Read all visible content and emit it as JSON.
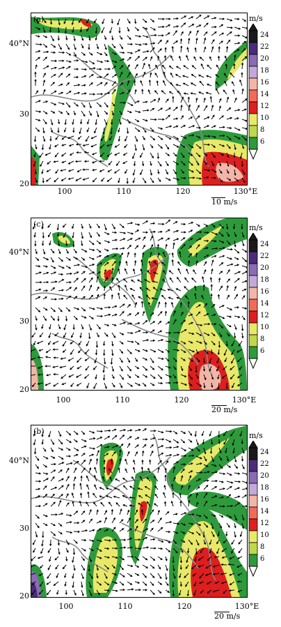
{
  "colorbar": {
    "unit": "m/s",
    "ticks": [
      "24",
      "22",
      "20",
      "18",
      "16",
      "14",
      "12",
      "10",
      "8",
      "6"
    ],
    "colors": [
      "#1a1a1a",
      "#4b2c7a",
      "#8b6bb4",
      "#c3a9d9",
      "#f2b6a8",
      "#f26b5a",
      "#dd1f1f",
      "#e8e86a",
      "#bfd94a",
      "#2e9a3c"
    ]
  },
  "panels": [
    {
      "label": "(a)",
      "x_ticks": [
        "100",
        "110",
        "120",
        "130°E"
      ],
      "y_ticks": [
        "40°N",
        "30",
        "20"
      ],
      "ref_vector": "10 m/s"
    },
    {
      "label": "(c)",
      "x_ticks": [
        "100",
        "110",
        "120",
        "130°E"
      ],
      "y_ticks": [
        "40°N",
        "30",
        "20"
      ],
      "ref_vector": "20 m/s"
    },
    {
      "label": "(b)",
      "x_ticks": [
        "100",
        "110",
        "120",
        "130°E"
      ],
      "y_ticks": [
        "40°N",
        "30",
        "20"
      ],
      "ref_vector": "20 m/s"
    }
  ]
}
